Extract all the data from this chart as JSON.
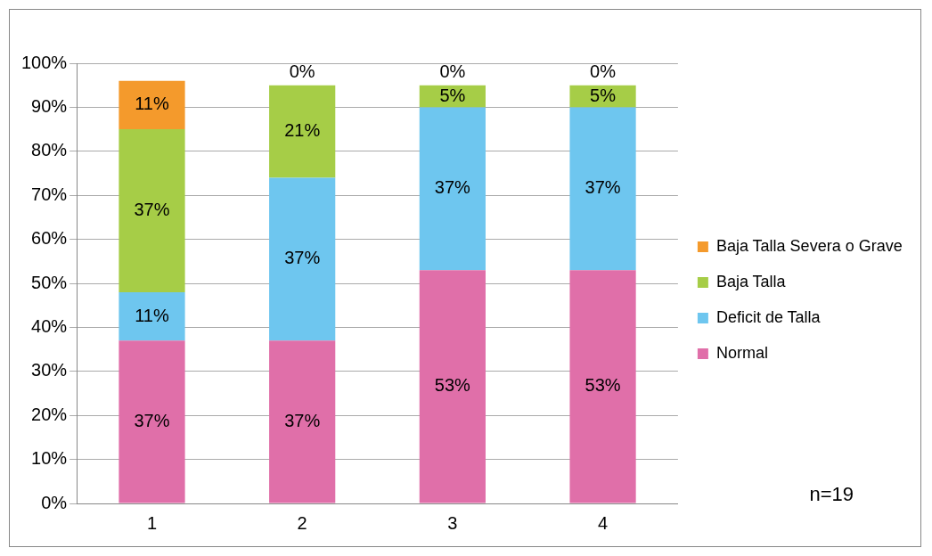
{
  "chart_data": {
    "type": "bar",
    "stacked": true,
    "categories": [
      "1",
      "2",
      "3",
      "4"
    ],
    "series": [
      {
        "name": "Normal",
        "color": "#e06fa9",
        "values": [
          37,
          37,
          53,
          53
        ],
        "value_labels": [
          "37%",
          "37%",
          "53%",
          "53%"
        ]
      },
      {
        "name": "Deficit de Talla",
        "color": "#6ec6ef",
        "values": [
          11,
          37,
          37,
          37
        ],
        "value_labels": [
          "11%",
          "37%",
          "37%",
          "37%"
        ]
      },
      {
        "name": "Baja Talla",
        "color": "#a6cd47",
        "values": [
          37,
          21,
          5,
          5
        ],
        "value_labels": [
          "37%",
          "21%",
          "5%",
          "5%"
        ]
      },
      {
        "name": "Baja Talla Severa o Grave",
        "color": "#f49a2c",
        "values": [
          11,
          0,
          0,
          0
        ],
        "value_labels": [
          "11%",
          "0%",
          "0%",
          "0%"
        ]
      }
    ],
    "ylim": [
      0,
      100
    ],
    "yticks": [
      {
        "value": 0,
        "label": "0%"
      },
      {
        "value": 10,
        "label": "10%"
      },
      {
        "value": 20,
        "label": "20%"
      },
      {
        "value": 30,
        "label": "30%"
      },
      {
        "value": 40,
        "label": "40%"
      },
      {
        "value": 50,
        "label": "50%"
      },
      {
        "value": 60,
        "label": "60%"
      },
      {
        "value": 70,
        "label": "70%"
      },
      {
        "value": 80,
        "label": "80%"
      },
      {
        "value": 90,
        "label": "90%"
      },
      {
        "value": 100,
        "label": "100%"
      }
    ],
    "grid": "y",
    "legend": "right",
    "annotations": [
      "n=19"
    ]
  }
}
